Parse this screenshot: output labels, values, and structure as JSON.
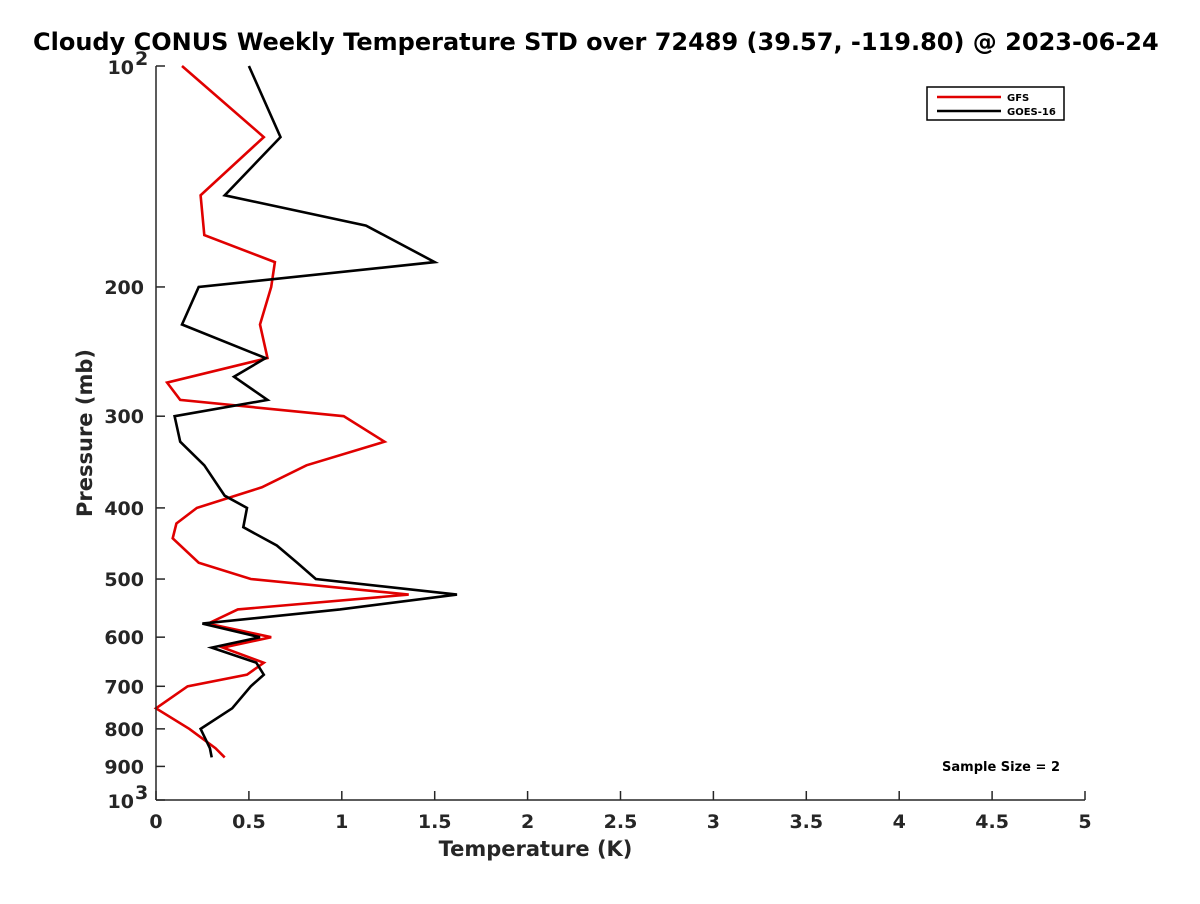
{
  "chart_data": {
    "type": "line",
    "title": "Cloudy CONUS Weekly Temperature STD over 72489 (39.57, -119.80) @ 2023-06-24",
    "xlabel": "Temperature (K)",
    "ylabel": "Pressure (mb)",
    "xlim": [
      0,
      5
    ],
    "ylim": [
      100,
      1000
    ],
    "y_scale": "log",
    "y_reversed": true,
    "x_ticks": [
      "0",
      "0.5",
      "1",
      "1.5",
      "2",
      "2.5",
      "3",
      "3.5",
      "4",
      "4.5",
      "5"
    ],
    "y_ticks": [
      {
        "value": 100,
        "base": "10",
        "exp": "2"
      },
      {
        "value": 200,
        "label": "200"
      },
      {
        "value": 300,
        "label": "300"
      },
      {
        "value": 400,
        "label": "400"
      },
      {
        "value": 500,
        "label": "500"
      },
      {
        "value": 600,
        "label": "600"
      },
      {
        "value": 700,
        "label": "700"
      },
      {
        "value": 800,
        "label": "800"
      },
      {
        "value": 900,
        "label": "900"
      },
      {
        "value": 1000,
        "base": "10",
        "exp": "3"
      }
    ],
    "grid": false,
    "legend_position": "top-right",
    "annotation": "Sample Size = 2",
    "series": [
      {
        "name": "GFS",
        "color": "#e00000",
        "points": [
          {
            "x": 0.14,
            "p": 100
          },
          {
            "x": 0.58,
            "p": 125
          },
          {
            "x": 0.24,
            "p": 150
          },
          {
            "x": 0.26,
            "p": 170
          },
          {
            "x": 0.64,
            "p": 185
          },
          {
            "x": 0.62,
            "p": 200
          },
          {
            "x": 0.56,
            "p": 225
          },
          {
            "x": 0.6,
            "p": 250
          },
          {
            "x": 0.06,
            "p": 270
          },
          {
            "x": 0.13,
            "p": 285
          },
          {
            "x": 1.01,
            "p": 300
          },
          {
            "x": 1.23,
            "p": 325
          },
          {
            "x": 0.81,
            "p": 350
          },
          {
            "x": 0.57,
            "p": 375
          },
          {
            "x": 0.22,
            "p": 400
          },
          {
            "x": 0.11,
            "p": 420
          },
          {
            "x": 0.09,
            "p": 440
          },
          {
            "x": 0.23,
            "p": 475
          },
          {
            "x": 0.51,
            "p": 500
          },
          {
            "x": 1.36,
            "p": 525
          },
          {
            "x": 0.44,
            "p": 550
          },
          {
            "x": 0.28,
            "p": 575
          },
          {
            "x": 0.62,
            "p": 600
          },
          {
            "x": 0.36,
            "p": 620
          },
          {
            "x": 0.58,
            "p": 650
          },
          {
            "x": 0.49,
            "p": 675
          },
          {
            "x": 0.17,
            "p": 700
          },
          {
            "x": 0.0,
            "p": 750
          },
          {
            "x": 0.18,
            "p": 800
          },
          {
            "x": 0.32,
            "p": 850
          },
          {
            "x": 0.37,
            "p": 875
          }
        ]
      },
      {
        "name": "GOES-16",
        "color": "#000000",
        "points": [
          {
            "x": 0.5,
            "p": 100
          },
          {
            "x": 0.67,
            "p": 125
          },
          {
            "x": 0.37,
            "p": 150
          },
          {
            "x": 1.13,
            "p": 165
          },
          {
            "x": 1.5,
            "p": 185
          },
          {
            "x": 0.23,
            "p": 200
          },
          {
            "x": 0.14,
            "p": 225
          },
          {
            "x": 0.59,
            "p": 250
          },
          {
            "x": 0.42,
            "p": 265
          },
          {
            "x": 0.6,
            "p": 285
          },
          {
            "x": 0.1,
            "p": 300
          },
          {
            "x": 0.13,
            "p": 325
          },
          {
            "x": 0.26,
            "p": 350
          },
          {
            "x": 0.37,
            "p": 385
          },
          {
            "x": 0.49,
            "p": 400
          },
          {
            "x": 0.47,
            "p": 425
          },
          {
            "x": 0.65,
            "p": 450
          },
          {
            "x": 0.76,
            "p": 475
          },
          {
            "x": 0.86,
            "p": 500
          },
          {
            "x": 1.62,
            "p": 525
          },
          {
            "x": 0.99,
            "p": 550
          },
          {
            "x": 0.25,
            "p": 575
          },
          {
            "x": 0.56,
            "p": 600
          },
          {
            "x": 0.3,
            "p": 620
          },
          {
            "x": 0.54,
            "p": 650
          },
          {
            "x": 0.58,
            "p": 675
          },
          {
            "x": 0.51,
            "p": 700
          },
          {
            "x": 0.41,
            "p": 750
          },
          {
            "x": 0.24,
            "p": 800
          },
          {
            "x": 0.29,
            "p": 850
          },
          {
            "x": 0.3,
            "p": 875
          }
        ]
      }
    ]
  }
}
